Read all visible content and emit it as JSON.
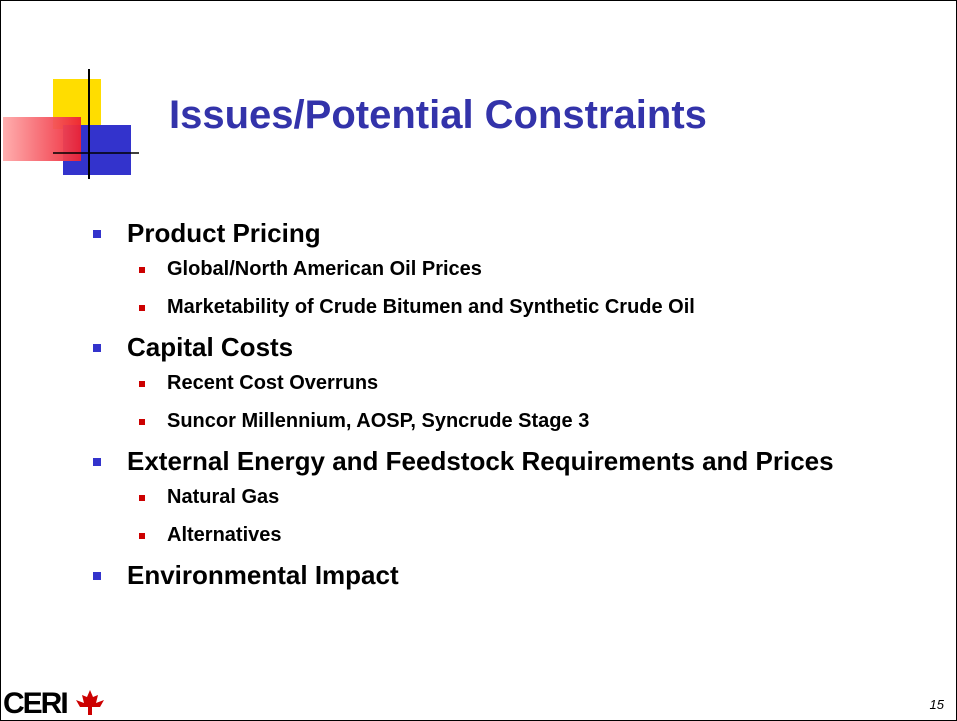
{
  "title": "Issues/Potential Constraints",
  "bullets": [
    {
      "text": "Product Pricing",
      "sub": [
        "Global/North American Oil Prices",
        "Marketability of Crude Bitumen and Synthetic Crude Oil"
      ]
    },
    {
      "text": "Capital Costs",
      "sub": [
        "Recent Cost Overruns",
        "Suncor Millennium, AOSP, Syncrude Stage 3"
      ]
    },
    {
      "text": "External Energy and Feedstock Requirements and Prices",
      "sub": [
        "Natural Gas",
        "Alternatives"
      ]
    },
    {
      "text": "Environmental Impact",
      "sub": []
    }
  ],
  "logo": "CERI",
  "page_number": "15"
}
